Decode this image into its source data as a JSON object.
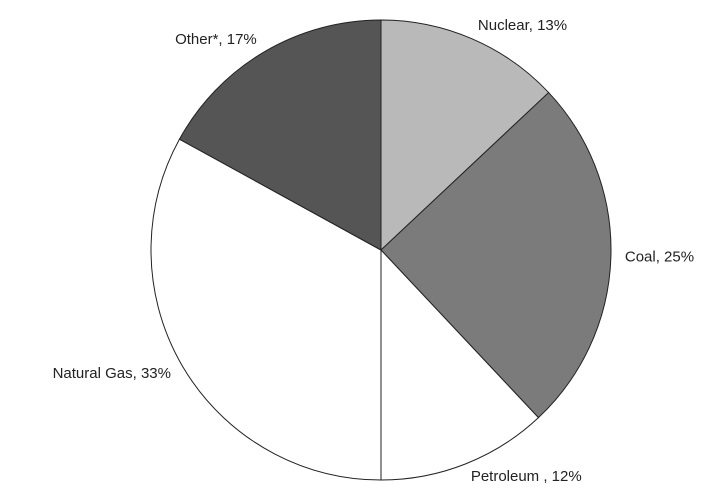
{
  "chart_data": {
    "type": "pie",
    "values": [
      13,
      25,
      12,
      33,
      17
    ],
    "value_labels": [
      "Nuclear, 13%",
      "Coal, 25%",
      "Petroleum , 12%",
      "Natural Gas, 33%",
      "Other*, 17%"
    ],
    "colors": [
      "#b9b9b9",
      "#7b7b7b",
      "#ffffff",
      "#ffffff",
      "#555555"
    ]
  }
}
